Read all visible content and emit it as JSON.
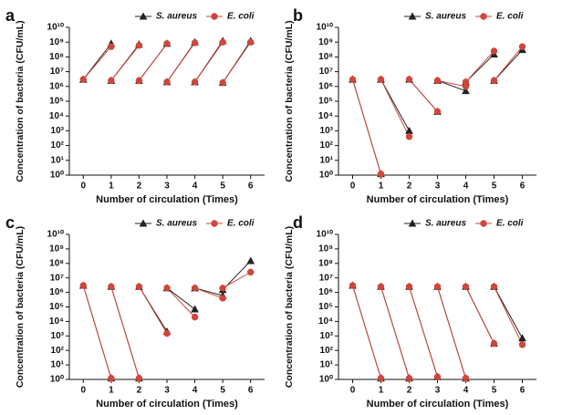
{
  "chart_data": [
    {
      "type": "line",
      "panel_label": "a",
      "x_label": "Number of circulation (Times)",
      "y_label": "Concentration of bacteria (CFU/mL)",
      "x": [
        0,
        1,
        1,
        1,
        2,
        2,
        2,
        3,
        3,
        3,
        4,
        4,
        4,
        5,
        5,
        5,
        6
      ],
      "xlim": [
        -0.5,
        6.5
      ],
      "xticks": [
        0,
        1,
        2,
        3,
        4,
        5,
        6
      ],
      "ylim": [
        1,
        10000000000
      ],
      "log_y": true,
      "legend": "upper right",
      "yticks": [
        {
          "value": 1,
          "label": "10⁰"
        },
        {
          "value": 10,
          "label": "10¹"
        },
        {
          "value": 100,
          "label": "10²"
        },
        {
          "value": 1000,
          "label": "10³"
        },
        {
          "value": 10000,
          "label": "10⁴"
        },
        {
          "value": 100000,
          "label": "10⁵"
        },
        {
          "value": 1000000,
          "label": "10⁶"
        },
        {
          "value": 10000000,
          "label": "10⁷"
        },
        {
          "value": 100000000,
          "label": "10⁸"
        },
        {
          "value": 1000000000,
          "label": "10⁹"
        },
        {
          "value": 10000000000,
          "label": "10¹⁰"
        }
      ],
      "series": [
        {
          "name": "S. aureus",
          "color": "#222222",
          "marker": "triangle",
          "values": [
            3000000,
            800000000,
            null,
            2500000,
            700000000,
            null,
            2500000,
            800000000,
            null,
            2000000,
            1000000000,
            null,
            2000000,
            1200000000,
            null,
            1800000,
            1200000000
          ]
        },
        {
          "name": "E. coli",
          "color": "#d0463a",
          "marker": "circle",
          "values": [
            3000000,
            500000000,
            null,
            2500000,
            600000000,
            null,
            2500000,
            800000000,
            null,
            2000000,
            900000000,
            null,
            2000000,
            1000000000,
            null,
            1800000,
            1000000000
          ]
        }
      ]
    },
    {
      "type": "line",
      "panel_label": "b",
      "x_label": "Number of circulation (Times)",
      "y_label": "Concentration of bacteria (CFU/mL)",
      "x": [
        0,
        1,
        1,
        1,
        2,
        2,
        2,
        3,
        3,
        3,
        4,
        4,
        4,
        5,
        5,
        5,
        6
      ],
      "xlim": [
        -0.5,
        6.5
      ],
      "xticks": [
        0,
        1,
        2,
        3,
        4,
        5,
        6
      ],
      "ylim": [
        1,
        10000000000
      ],
      "log_y": true,
      "legend": "upper right",
      "yticks": [
        {
          "value": 1,
          "label": "10⁰"
        },
        {
          "value": 10,
          "label": "10¹"
        },
        {
          "value": 100,
          "label": "10²"
        },
        {
          "value": 1000,
          "label": "10³"
        },
        {
          "value": 10000,
          "label": "10⁴"
        },
        {
          "value": 100000,
          "label": "10⁵"
        },
        {
          "value": 1000000,
          "label": "10⁶"
        },
        {
          "value": 10000000,
          "label": "10⁷"
        },
        {
          "value": 100000000,
          "label": "10⁸"
        },
        {
          "value": 1000000000,
          "label": "10⁹"
        },
        {
          "value": 10000000000,
          "label": "10¹⁰"
        }
      ],
      "series": [
        {
          "name": "S. aureus",
          "color": "#222222",
          "marker": "triangle",
          "values": [
            3000000,
            1.2,
            null,
            3000000,
            1000,
            null,
            3000000,
            20000,
            null,
            2500000,
            500000,
            null,
            2000000,
            150000000,
            null,
            2500000,
            300000000
          ]
        },
        {
          "name": "E. coli",
          "color": "#d0463a",
          "marker": "circle",
          "values": [
            3000000,
            1.2,
            null,
            3000000,
            400,
            null,
            3000000,
            20000,
            null,
            2500000,
            1000000,
            null,
            2000000,
            250000000,
            null,
            2500000,
            500000000
          ]
        }
      ]
    },
    {
      "type": "line",
      "panel_label": "c",
      "x_label": "Number of circulation (Times)",
      "y_label": "Concentration of bacteria (CFU/mL)",
      "x": [
        0,
        1,
        1,
        1,
        2,
        2,
        2,
        3,
        3,
        3,
        4,
        4,
        4,
        5,
        5,
        5,
        6
      ],
      "xlim": [
        -0.5,
        6.5
      ],
      "xticks": [
        0,
        1,
        2,
        3,
        4,
        5,
        6
      ],
      "ylim": [
        1,
        10000000000
      ],
      "log_y": true,
      "legend": "upper right",
      "yticks": [
        {
          "value": 1,
          "label": "10⁰"
        },
        {
          "value": 10,
          "label": "10¹"
        },
        {
          "value": 100,
          "label": "10²"
        },
        {
          "value": 1000,
          "label": "10³"
        },
        {
          "value": 10000,
          "label": "10⁴"
        },
        {
          "value": 100000,
          "label": "10⁵"
        },
        {
          "value": 1000000,
          "label": "10⁶"
        },
        {
          "value": 10000000,
          "label": "10⁷"
        },
        {
          "value": 100000000,
          "label": "10⁸"
        },
        {
          "value": 1000000000,
          "label": "10⁹"
        },
        {
          "value": 10000000000,
          "label": "10¹⁰"
        }
      ],
      "series": [
        {
          "name": "S. aureus",
          "color": "#222222",
          "marker": "triangle",
          "values": [
            3000000,
            1.2,
            null,
            2500000,
            1.2,
            null,
            2500000,
            2000,
            null,
            2000000,
            70000,
            null,
            2000000,
            600000,
            null,
            1500000,
            150000000
          ]
        },
        {
          "name": "E. coli",
          "color": "#d0463a",
          "marker": "circle",
          "values": [
            3000000,
            1.2,
            null,
            2500000,
            1.2,
            null,
            2500000,
            1500,
            null,
            2000000,
            20000,
            null,
            2000000,
            400000,
            null,
            2000000,
            25000000
          ]
        }
      ]
    },
    {
      "type": "line",
      "panel_label": "d",
      "x_label": "Number of circulation (Times)",
      "y_label": "Concentration of bacteria (CFU/mL)",
      "x": [
        0,
        1,
        1,
        1,
        2,
        2,
        2,
        3,
        3,
        3,
        4,
        4,
        4,
        5,
        5,
        5,
        6
      ],
      "xlim": [
        -0.5,
        6.5
      ],
      "xticks": [
        0,
        1,
        2,
        3,
        4,
        5,
        6
      ],
      "ylim": [
        1,
        10000000000
      ],
      "log_y": true,
      "legend": "upper right",
      "yticks": [
        {
          "value": 1,
          "label": "10⁰"
        },
        {
          "value": 10,
          "label": "10¹"
        },
        {
          "value": 100,
          "label": "10²"
        },
        {
          "value": 1000,
          "label": "10³"
        },
        {
          "value": 10000,
          "label": "10⁴"
        },
        {
          "value": 100000,
          "label": "10⁵"
        },
        {
          "value": 1000000,
          "label": "10⁶"
        },
        {
          "value": 10000000,
          "label": "10⁷"
        },
        {
          "value": 100000000,
          "label": "10⁸"
        },
        {
          "value": 1000000000,
          "label": "10⁹"
        },
        {
          "value": 10000000000,
          "label": "10¹⁰"
        }
      ],
      "series": [
        {
          "name": "S. aureus",
          "color": "#222222",
          "marker": "triangle",
          "values": [
            3000000,
            1.2,
            null,
            2500000,
            1.2,
            null,
            2500000,
            1.5,
            null,
            2500000,
            1.2,
            null,
            2500000,
            300,
            null,
            2500000,
            700
          ]
        },
        {
          "name": "E. coli",
          "color": "#d0463a",
          "marker": "circle",
          "values": [
            3000000,
            1.2,
            null,
            2500000,
            1.2,
            null,
            2500000,
            1.5,
            null,
            2500000,
            1.2,
            null,
            2500000,
            300,
            null,
            2500000,
            250
          ]
        }
      ]
    }
  ]
}
